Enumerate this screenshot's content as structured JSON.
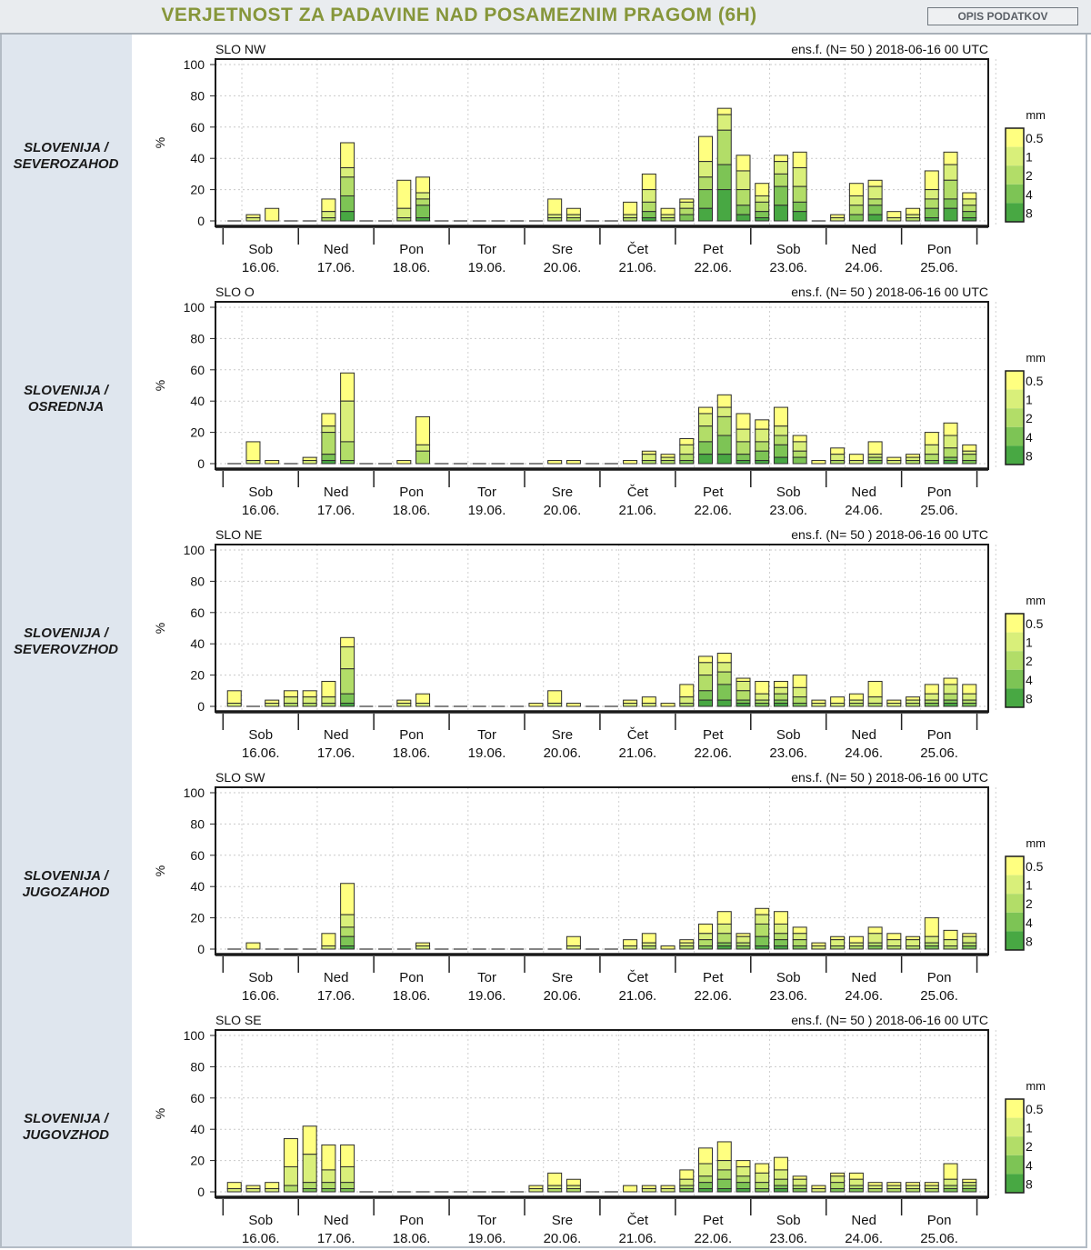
{
  "header": {
    "title": "VERJETNOST ZA PADAVINE NAD POSAMEZNIM PRAGOM (6H)",
    "description_button": "OPIS PODATKOV"
  },
  "colors": {
    "thresholds": [
      "#ffff80",
      "#d9ef7a",
      "#b2dd68",
      "#7dc455",
      "#48a843"
    ],
    "sidebar": "#dfe6ee"
  },
  "chart_common": {
    "ylabel": "%",
    "yticks": [
      "100",
      "80",
      "60",
      "40",
      "20",
      "0"
    ],
    "ylim": [
      0,
      100
    ],
    "ensemble": "ens.f. (N= 50 ) 2018-06-16 00 UTC",
    "day_names": [
      "Sob",
      "Ned",
      "Pon",
      "Tor",
      "Sre",
      "Čet",
      "Pet",
      "Sob",
      "Ned",
      "Pon"
    ],
    "day_dates": [
      "16.06.",
      "17.06.",
      "18.06.",
      "19.06.",
      "20.06.",
      "21.06.",
      "22.06.",
      "23.06.",
      "24.06.",
      "25.06."
    ],
    "legend_unit": "mm",
    "legend_labels": [
      "0.5",
      "1",
      "2",
      "4",
      "8"
    ]
  },
  "regions": [
    {
      "label_line1": "SLOVENIJA /",
      "label_line2": "SEVEROZAHOD"
    },
    {
      "label_line1": "SLOVENIJA /",
      "label_line2": "OSREDNJA"
    },
    {
      "label_line1": "SLOVENIJA /",
      "label_line2": "SEVEROVZHOD"
    },
    {
      "label_line1": "SLOVENIJA /",
      "label_line2": "JUGOZAHOD"
    },
    {
      "label_line1": "SLOVENIJA /",
      "label_line2": "JUGOVZHOD"
    }
  ],
  "chart_data": [
    {
      "type": "bar",
      "title": "SLO NW",
      "ylim": [
        0,
        100
      ],
      "thresholds_mm": [
        "0.5",
        "1",
        "2",
        "4",
        "8"
      ],
      "values": [
        [
          0,
          0,
          0,
          0,
          0
        ],
        [
          4,
          2,
          0,
          0,
          0
        ],
        [
          8,
          0,
          0,
          0,
          0
        ],
        [
          0,
          0,
          0,
          0,
          0
        ],
        [
          0,
          0,
          0,
          0,
          0
        ],
        [
          14,
          6,
          2,
          0,
          0
        ],
        [
          50,
          34,
          28,
          16,
          6
        ],
        [
          0,
          0,
          0,
          0,
          0
        ],
        [
          0,
          0,
          0,
          0,
          0
        ],
        [
          26,
          8,
          2,
          0,
          0
        ],
        [
          28,
          18,
          14,
          10,
          2
        ],
        [
          0,
          0,
          0,
          0,
          0
        ],
        [
          0,
          0,
          0,
          0,
          0
        ],
        [
          0,
          0,
          0,
          0,
          0
        ],
        [
          0,
          0,
          0,
          0,
          0
        ],
        [
          0,
          0,
          0,
          0,
          0
        ],
        [
          0,
          0,
          0,
          0,
          0
        ],
        [
          14,
          4,
          2,
          0,
          0
        ],
        [
          8,
          4,
          2,
          0,
          0
        ],
        [
          0,
          0,
          0,
          0,
          0
        ],
        [
          0,
          0,
          0,
          0,
          0
        ],
        [
          12,
          4,
          2,
          0,
          0
        ],
        [
          30,
          20,
          12,
          6,
          2
        ],
        [
          8,
          4,
          2,
          0,
          0
        ],
        [
          14,
          12,
          8,
          4,
          0
        ],
        [
          54,
          38,
          28,
          20,
          8
        ],
        [
          72,
          68,
          58,
          36,
          20
        ],
        [
          42,
          32,
          20,
          10,
          4
        ],
        [
          24,
          16,
          12,
          6,
          2
        ],
        [
          42,
          38,
          30,
          22,
          10
        ],
        [
          44,
          34,
          22,
          12,
          6
        ],
        [
          0,
          0,
          0,
          0,
          0
        ],
        [
          4,
          2,
          0,
          0,
          0
        ],
        [
          24,
          16,
          10,
          4,
          0
        ],
        [
          26,
          22,
          14,
          10,
          4
        ],
        [
          6,
          2,
          0,
          0,
          0
        ],
        [
          8,
          4,
          2,
          0,
          0
        ],
        [
          32,
          20,
          14,
          8,
          2
        ],
        [
          44,
          36,
          26,
          14,
          8
        ],
        [
          18,
          14,
          10,
          6,
          2
        ]
      ]
    },
    {
      "type": "bar",
      "title": "SLO O",
      "ylim": [
        0,
        100
      ],
      "thresholds_mm": [
        "0.5",
        "1",
        "2",
        "4",
        "8"
      ],
      "values": [
        [
          0,
          0,
          0,
          0,
          0
        ],
        [
          14,
          2,
          0,
          0,
          0
        ],
        [
          2,
          0,
          0,
          0,
          0
        ],
        [
          0,
          0,
          0,
          0,
          0
        ],
        [
          4,
          2,
          0,
          0,
          0
        ],
        [
          32,
          24,
          20,
          6,
          2
        ],
        [
          58,
          40,
          14,
          2,
          0
        ],
        [
          0,
          0,
          0,
          0,
          0
        ],
        [
          0,
          0,
          0,
          0,
          0
        ],
        [
          2,
          0,
          0,
          0,
          0
        ],
        [
          30,
          12,
          8,
          0,
          0
        ],
        [
          0,
          0,
          0,
          0,
          0
        ],
        [
          0,
          0,
          0,
          0,
          0
        ],
        [
          0,
          0,
          0,
          0,
          0
        ],
        [
          0,
          0,
          0,
          0,
          0
        ],
        [
          0,
          0,
          0,
          0,
          0
        ],
        [
          0,
          0,
          0,
          0,
          0
        ],
        [
          2,
          0,
          0,
          0,
          0
        ],
        [
          2,
          0,
          0,
          0,
          0
        ],
        [
          0,
          0,
          0,
          0,
          0
        ],
        [
          0,
          0,
          0,
          0,
          0
        ],
        [
          2,
          0,
          0,
          0,
          0
        ],
        [
          8,
          6,
          2,
          0,
          0
        ],
        [
          6,
          4,
          2,
          0,
          0
        ],
        [
          16,
          12,
          6,
          2,
          0
        ],
        [
          36,
          32,
          24,
          14,
          6
        ],
        [
          44,
          36,
          30,
          18,
          6
        ],
        [
          32,
          22,
          14,
          6,
          2
        ],
        [
          28,
          22,
          14,
          8,
          2
        ],
        [
          36,
          24,
          18,
          12,
          4
        ],
        [
          18,
          14,
          8,
          4,
          0
        ],
        [
          2,
          0,
          0,
          0,
          0
        ],
        [
          10,
          6,
          2,
          0,
          0
        ],
        [
          6,
          2,
          0,
          0,
          0
        ],
        [
          14,
          6,
          4,
          2,
          0
        ],
        [
          4,
          2,
          0,
          0,
          0
        ],
        [
          6,
          4,
          2,
          0,
          0
        ],
        [
          20,
          12,
          6,
          2,
          0
        ],
        [
          26,
          18,
          10,
          4,
          2
        ],
        [
          12,
          8,
          6,
          2,
          0
        ]
      ]
    },
    {
      "type": "bar",
      "title": "SLO NE",
      "ylim": [
        0,
        100
      ],
      "thresholds_mm": [
        "0.5",
        "1",
        "2",
        "4",
        "8"
      ],
      "values": [
        [
          10,
          2,
          0,
          0,
          0
        ],
        [
          0,
          0,
          0,
          0,
          0
        ],
        [
          4,
          2,
          0,
          0,
          0
        ],
        [
          10,
          6,
          2,
          0,
          0
        ],
        [
          10,
          6,
          2,
          0,
          0
        ],
        [
          16,
          6,
          2,
          0,
          0
        ],
        [
          44,
          38,
          24,
          8,
          2
        ],
        [
          0,
          0,
          0,
          0,
          0
        ],
        [
          0,
          0,
          0,
          0,
          0
        ],
        [
          4,
          2,
          0,
          0,
          0
        ],
        [
          8,
          2,
          0,
          0,
          0
        ],
        [
          0,
          0,
          0,
          0,
          0
        ],
        [
          0,
          0,
          0,
          0,
          0
        ],
        [
          0,
          0,
          0,
          0,
          0
        ],
        [
          0,
          0,
          0,
          0,
          0
        ],
        [
          0,
          0,
          0,
          0,
          0
        ],
        [
          2,
          0,
          0,
          0,
          0
        ],
        [
          10,
          2,
          0,
          0,
          0
        ],
        [
          2,
          0,
          0,
          0,
          0
        ],
        [
          0,
          0,
          0,
          0,
          0
        ],
        [
          0,
          0,
          0,
          0,
          0
        ],
        [
          4,
          2,
          0,
          0,
          0
        ],
        [
          6,
          2,
          0,
          0,
          0
        ],
        [
          2,
          0,
          0,
          0,
          0
        ],
        [
          14,
          6,
          2,
          0,
          0
        ],
        [
          32,
          28,
          20,
          10,
          4
        ],
        [
          34,
          28,
          22,
          14,
          4
        ],
        [
          18,
          16,
          10,
          4,
          2
        ],
        [
          16,
          8,
          4,
          2,
          0
        ],
        [
          16,
          12,
          8,
          4,
          2
        ],
        [
          20,
          12,
          6,
          2,
          0
        ],
        [
          4,
          2,
          0,
          0,
          0
        ],
        [
          6,
          2,
          0,
          0,
          0
        ],
        [
          8,
          4,
          2,
          0,
          0
        ],
        [
          16,
          6,
          2,
          0,
          0
        ],
        [
          4,
          2,
          0,
          0,
          0
        ],
        [
          6,
          4,
          2,
          0,
          0
        ],
        [
          14,
          8,
          4,
          2,
          0
        ],
        [
          18,
          14,
          8,
          4,
          2
        ],
        [
          14,
          8,
          4,
          2,
          0
        ]
      ]
    },
    {
      "type": "bar",
      "title": "SLO SW",
      "ylim": [
        0,
        100
      ],
      "thresholds_mm": [
        "0.5",
        "1",
        "2",
        "4",
        "8"
      ],
      "values": [
        [
          0,
          0,
          0,
          0,
          0
        ],
        [
          4,
          0,
          0,
          0,
          0
        ],
        [
          0,
          0,
          0,
          0,
          0
        ],
        [
          0,
          0,
          0,
          0,
          0
        ],
        [
          0,
          0,
          0,
          0,
          0
        ],
        [
          10,
          2,
          0,
          0,
          0
        ],
        [
          42,
          22,
          14,
          8,
          2
        ],
        [
          0,
          0,
          0,
          0,
          0
        ],
        [
          0,
          0,
          0,
          0,
          0
        ],
        [
          0,
          0,
          0,
          0,
          0
        ],
        [
          4,
          2,
          0,
          0,
          0
        ],
        [
          0,
          0,
          0,
          0,
          0
        ],
        [
          0,
          0,
          0,
          0,
          0
        ],
        [
          0,
          0,
          0,
          0,
          0
        ],
        [
          0,
          0,
          0,
          0,
          0
        ],
        [
          0,
          0,
          0,
          0,
          0
        ],
        [
          0,
          0,
          0,
          0,
          0
        ],
        [
          0,
          0,
          0,
          0,
          0
        ],
        [
          8,
          2,
          0,
          0,
          0
        ],
        [
          0,
          0,
          0,
          0,
          0
        ],
        [
          0,
          0,
          0,
          0,
          0
        ],
        [
          6,
          2,
          0,
          0,
          0
        ],
        [
          10,
          4,
          2,
          0,
          0
        ],
        [
          2,
          0,
          0,
          0,
          0
        ],
        [
          6,
          4,
          2,
          0,
          0
        ],
        [
          16,
          10,
          6,
          2,
          0
        ],
        [
          24,
          16,
          10,
          4,
          2
        ],
        [
          10,
          8,
          4,
          2,
          0
        ],
        [
          26,
          22,
          16,
          8,
          2
        ],
        [
          24,
          16,
          10,
          6,
          2
        ],
        [
          14,
          10,
          6,
          2,
          0
        ],
        [
          4,
          2,
          0,
          0,
          0
        ],
        [
          8,
          6,
          2,
          0,
          0
        ],
        [
          8,
          4,
          2,
          0,
          0
        ],
        [
          14,
          10,
          4,
          2,
          0
        ],
        [
          10,
          6,
          2,
          0,
          0
        ],
        [
          8,
          6,
          2,
          0,
          0
        ],
        [
          20,
          8,
          4,
          2,
          0
        ],
        [
          12,
          6,
          2,
          0,
          0
        ],
        [
          10,
          8,
          4,
          2,
          0
        ]
      ]
    },
    {
      "type": "bar",
      "title": "SLO SE",
      "ylim": [
        0,
        100
      ],
      "thresholds_mm": [
        "0.5",
        "1",
        "2",
        "4",
        "8"
      ],
      "values": [
        [
          6,
          2,
          0,
          0,
          0
        ],
        [
          4,
          2,
          0,
          0,
          0
        ],
        [
          6,
          2,
          0,
          0,
          0
        ],
        [
          34,
          16,
          4,
          0,
          0
        ],
        [
          42,
          24,
          6,
          2,
          0
        ],
        [
          30,
          14,
          6,
          2,
          0
        ],
        [
          30,
          16,
          6,
          2,
          0
        ],
        [
          0,
          0,
          0,
          0,
          0
        ],
        [
          0,
          0,
          0,
          0,
          0
        ],
        [
          0,
          0,
          0,
          0,
          0
        ],
        [
          0,
          0,
          0,
          0,
          0
        ],
        [
          0,
          0,
          0,
          0,
          0
        ],
        [
          0,
          0,
          0,
          0,
          0
        ],
        [
          0,
          0,
          0,
          0,
          0
        ],
        [
          0,
          0,
          0,
          0,
          0
        ],
        [
          0,
          0,
          0,
          0,
          0
        ],
        [
          4,
          2,
          0,
          0,
          0
        ],
        [
          12,
          4,
          2,
          0,
          0
        ],
        [
          8,
          4,
          2,
          0,
          0
        ],
        [
          0,
          0,
          0,
          0,
          0
        ],
        [
          0,
          0,
          0,
          0,
          0
        ],
        [
          4,
          0,
          0,
          0,
          0
        ],
        [
          4,
          2,
          0,
          0,
          0
        ],
        [
          4,
          2,
          0,
          0,
          0
        ],
        [
          14,
          8,
          4,
          2,
          0
        ],
        [
          28,
          18,
          10,
          6,
          2
        ],
        [
          32,
          20,
          14,
          8,
          2
        ],
        [
          20,
          16,
          10,
          6,
          2
        ],
        [
          18,
          12,
          6,
          2,
          0
        ],
        [
          22,
          14,
          8,
          4,
          2
        ],
        [
          10,
          8,
          4,
          2,
          0
        ],
        [
          4,
          2,
          0,
          0,
          0
        ],
        [
          12,
          10,
          6,
          2,
          0
        ],
        [
          12,
          8,
          4,
          2,
          0
        ],
        [
          6,
          4,
          2,
          0,
          0
        ],
        [
          6,
          4,
          2,
          0,
          0
        ],
        [
          6,
          4,
          2,
          0,
          0
        ],
        [
          6,
          4,
          2,
          0,
          0
        ],
        [
          18,
          8,
          4,
          2,
          0
        ],
        [
          8,
          6,
          4,
          2,
          0
        ]
      ]
    }
  ]
}
